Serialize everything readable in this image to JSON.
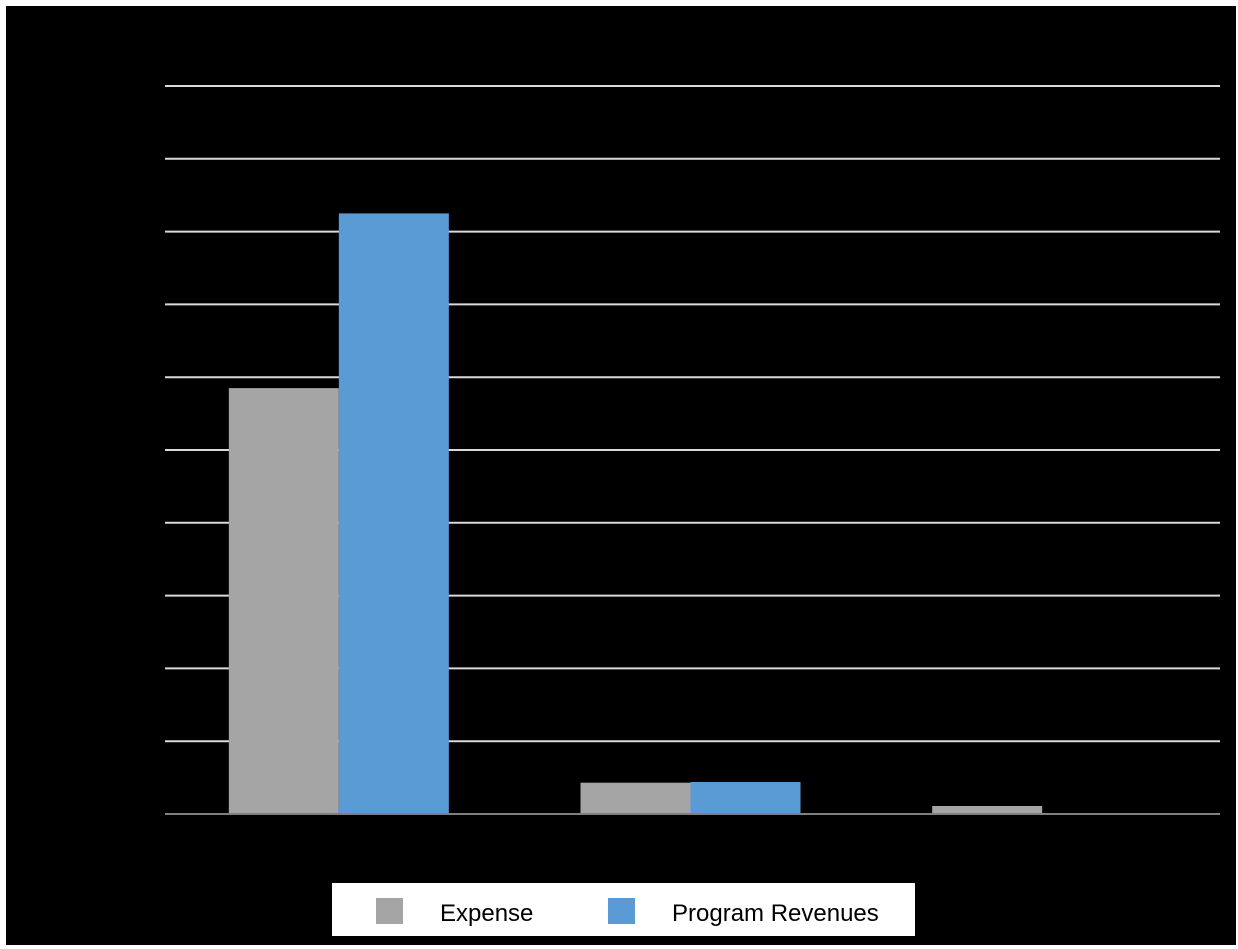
{
  "chart_data": {
    "type": "bar",
    "categories": [
      "",
      "",
      ""
    ],
    "series": [
      {
        "name": "Expense",
        "color": "#a5a5a5",
        "values": [
          5.85,
          0.43,
          0.11
        ]
      },
      {
        "name": "Program Revenues",
        "color": "#5b9bd5",
        "values": [
          8.25,
          0.44,
          0
        ]
      }
    ],
    "title": "",
    "xlabel": "",
    "ylabel": "",
    "ylim": [
      0,
      10
    ],
    "gridlines": true,
    "legend_position": "bottom",
    "background": "#000000",
    "gridline_color": "#d9d9d9"
  }
}
